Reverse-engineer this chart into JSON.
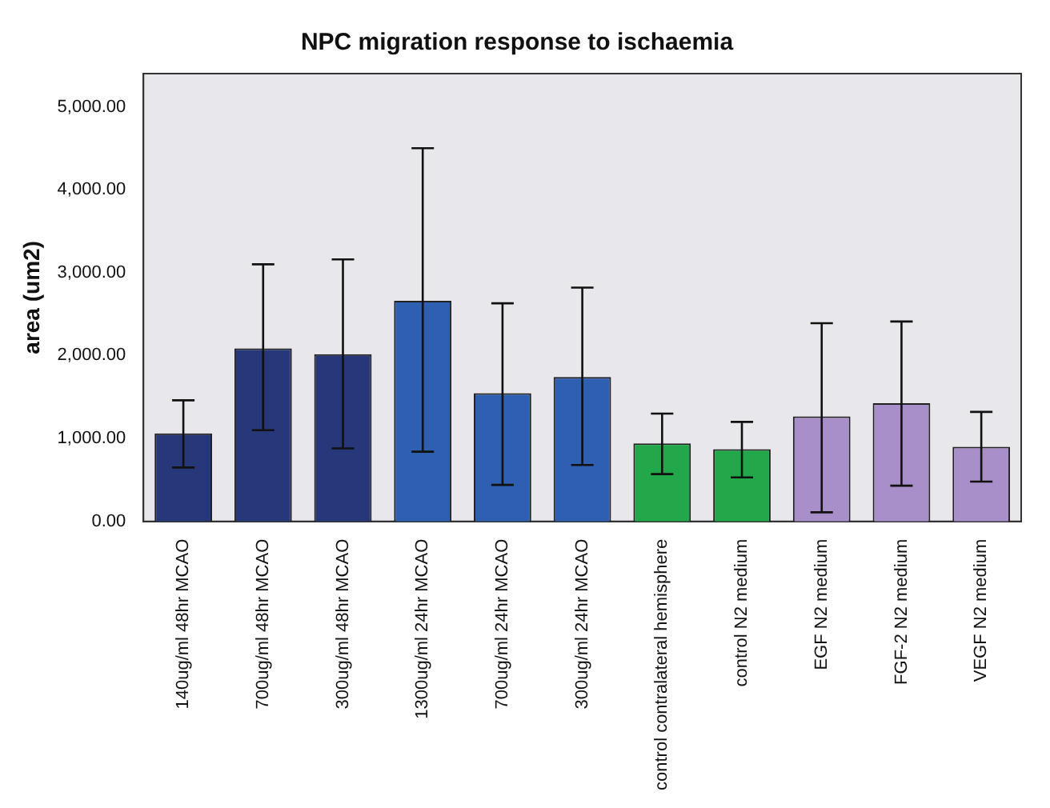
{
  "chart_data": {
    "type": "bar",
    "title": "NPC migration response to ischaemia",
    "ylabel": "area (um2)",
    "categories": [
      "140ug/ml 48hr MCAO",
      "700ug/ml 48hr MCAO",
      "300ug/ml 48hr MCAO",
      "1300ug/ml 24hr MCAO",
      "700ug/ml 24hr MCAO",
      "300ug/ml 24hr MCAO",
      "control contralateral hemisphere",
      "control N2 medium",
      "EGF N2 medium",
      "FGF-2 N2 medium",
      "VEGF N2 medium"
    ],
    "values": [
      1060,
      2085,
      2015,
      2660,
      1545,
      1740,
      940,
      870,
      1265,
      1425,
      900
    ],
    "colors": [
      "#27387a",
      "#27387a",
      "#27387a",
      "#2e5fb0",
      "#2e5fb0",
      "#2e5fb0",
      "#22a84a",
      "#22a84a",
      "#a98fc9",
      "#a98fc9",
      "#a98fc9"
    ],
    "errors": [
      [
        650,
        1460
      ],
      [
        1100,
        3100
      ],
      [
        880,
        3160
      ],
      [
        840,
        4500
      ],
      [
        440,
        2630
      ],
      [
        680,
        2820
      ],
      [
        570,
        1300
      ],
      [
        530,
        1200
      ],
      [
        110,
        2390
      ],
      [
        430,
        2410
      ],
      [
        480,
        1320
      ]
    ],
    "ylim": [
      0,
      5400
    ],
    "yticks": [
      {
        "value": 0,
        "label": "0.00"
      },
      {
        "value": 1000,
        "label": "1,000.00"
      },
      {
        "value": 2000,
        "label": "2,000.00"
      },
      {
        "value": 3000,
        "label": "3,000.00"
      },
      {
        "value": 4000,
        "label": "4,000.00"
      },
      {
        "value": 5000,
        "label": "5,000.00"
      }
    ],
    "grid": false,
    "legend": false
  }
}
